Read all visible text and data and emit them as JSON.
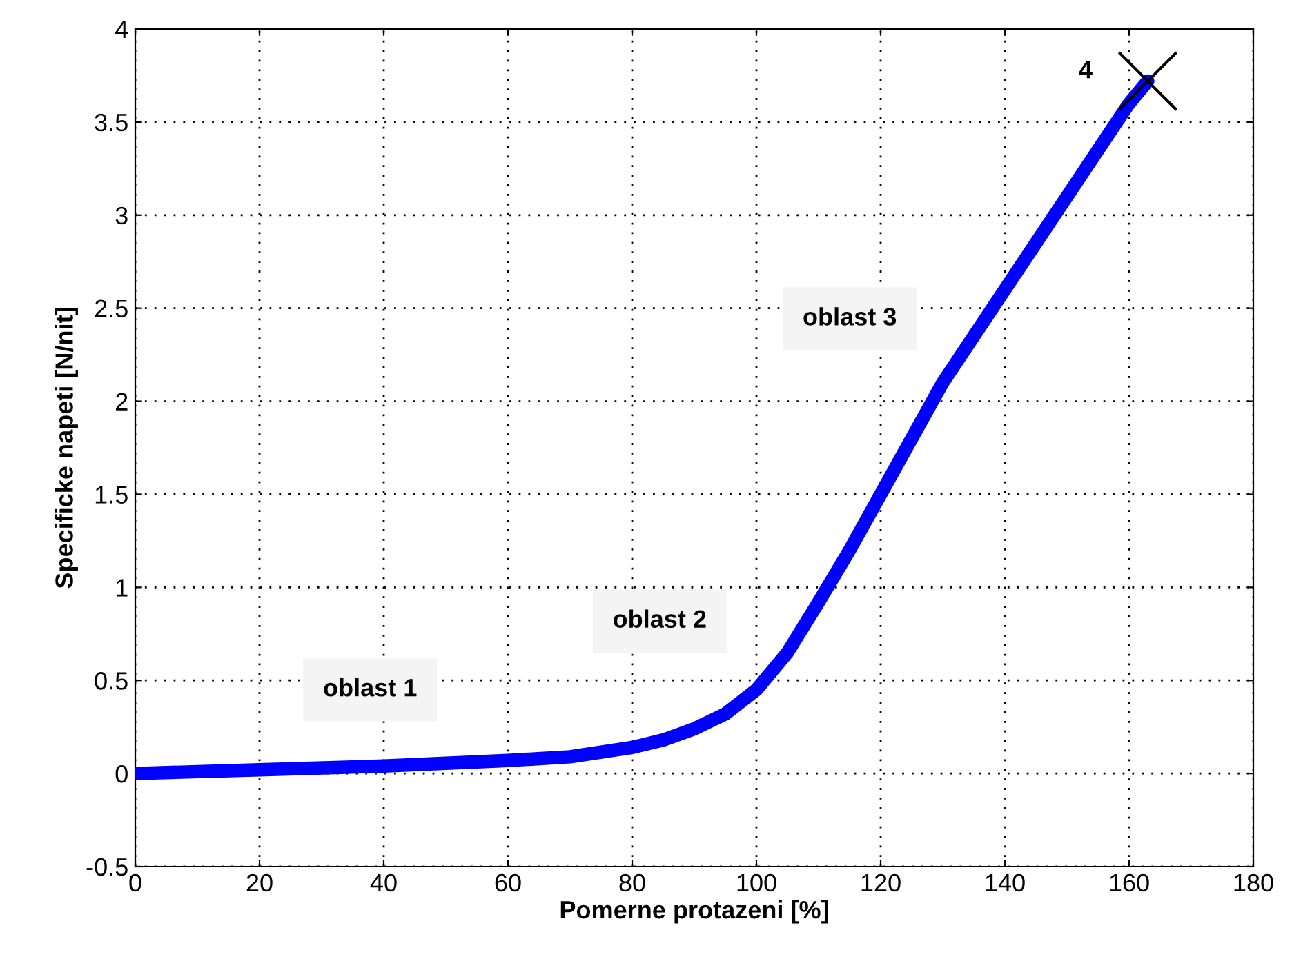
{
  "chart_data": {
    "type": "line",
    "xlabel": "Pomerne protazeni [%]",
    "ylabel": "Specificke napeti [N/nit]",
    "xlim": [
      0,
      180
    ],
    "xticks": [
      0,
      20,
      40,
      60,
      80,
      100,
      120,
      140,
      160,
      180
    ],
    "ylim": [
      -0.5,
      4
    ],
    "yticks": [
      -0.5,
      0,
      0.5,
      1,
      1.5,
      2,
      2.5,
      3,
      3.5,
      4
    ],
    "grid": true,
    "line_style": "solid",
    "marker": "none",
    "series": [
      {
        "color": "#0000ff",
        "x": [
          0,
          20,
          40,
          60,
          70,
          80,
          85,
          90,
          95,
          100,
          105,
          110,
          115,
          120,
          125,
          130,
          135,
          140,
          145,
          150,
          155,
          160,
          163
        ],
        "values": [
          0,
          0.02,
          0.04,
          0.07,
          0.09,
          0.14,
          0.18,
          0.24,
          0.32,
          0.45,
          0.65,
          0.92,
          1.2,
          1.5,
          1.8,
          2.1,
          2.35,
          2.6,
          2.85,
          3.1,
          3.35,
          3.6,
          3.72
        ]
      },
      {
        "type": "scatter",
        "color": "#000000",
        "marker": "cross",
        "x": [
          163
        ],
        "values": [
          3.72
        ]
      }
    ],
    "annotations": [
      "oblast 1",
      "oblast 2",
      "oblast 3",
      "4"
    ]
  }
}
